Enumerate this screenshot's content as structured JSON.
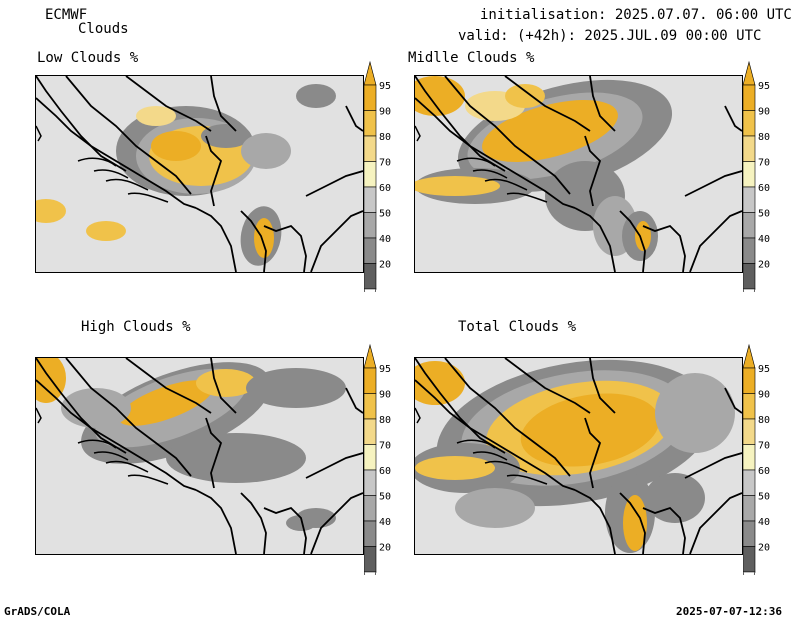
{
  "header": {
    "model": "ECMWF",
    "product": "Clouds",
    "init": "initialisation: 2025.07.07. 06:00 UTC",
    "valid": "valid: (+42h): 2025.JUL.09 00:00 UTC"
  },
  "panels": [
    {
      "title": "Low Clouds %"
    },
    {
      "title": "Midlle Clouds %"
    },
    {
      "title": "High Clouds %"
    },
    {
      "title": "Total Clouds %"
    }
  ],
  "legend": {
    "levels": [
      "95",
      "90",
      "80",
      "70",
      "60",
      "50",
      "40",
      "20"
    ],
    "colors": [
      "#ecae25",
      "#f0c24a",
      "#f3d98a",
      "#f6f3c0",
      "#c7c7c7",
      "#a8a8a8",
      "#8a8a8a",
      "#5f5f5f"
    ]
  },
  "footer": {
    "left": "GrADS/COLA",
    "right": "2025-07-07-12:36"
  }
}
